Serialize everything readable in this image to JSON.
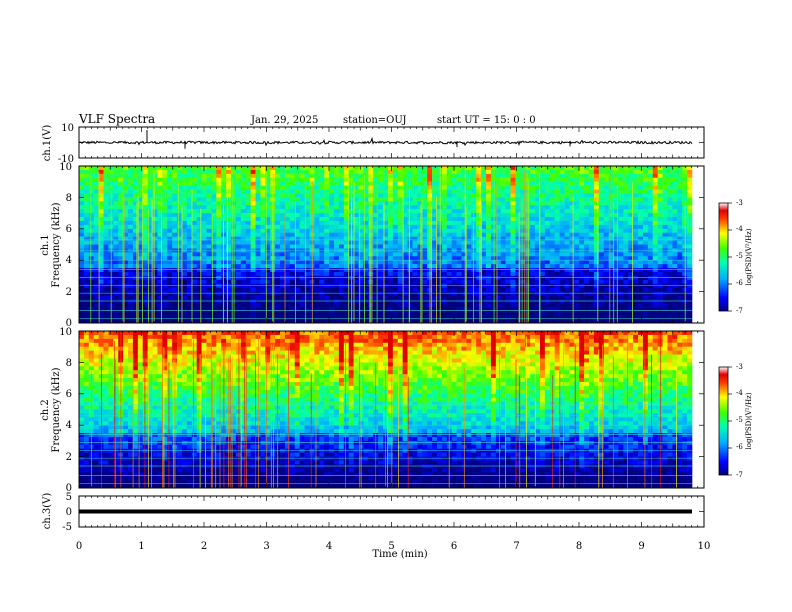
{
  "header": {
    "title": "VLF Spectra",
    "date": "Jan. 29, 2025",
    "station": "station=OUJ",
    "start": "start UT =  15: 0  : 0"
  },
  "chart_data": [
    {
      "type": "line",
      "ylabel": "ch.1(V)",
      "ylim": [
        -10,
        10
      ],
      "yticks": [
        "10",
        "-10"
      ],
      "baseline": 0,
      "color": "#000000"
    },
    {
      "type": "heatmap",
      "ylabel_line1": "ch.1",
      "ylabel_line2": "Frequency (kHz)",
      "ylim": [
        0,
        10
      ],
      "yticks": [
        "0",
        "2",
        "4",
        "6",
        "8",
        "10"
      ],
      "colorbar": {
        "label": "log(PSD)(V²/Hz)",
        "range": [
          -7,
          -3
        ],
        "ticks": [
          "-3",
          "-4",
          "-5",
          "-6",
          "-7"
        ]
      }
    },
    {
      "type": "heatmap",
      "ylabel_line1": "ch.2",
      "ylabel_line2": "Frequency (kHz)",
      "ylim": [
        0,
        10
      ],
      "yticks": [
        "0",
        "2",
        "4",
        "6",
        "8",
        "10"
      ],
      "colorbar": {
        "label": "log(PSD)(V²/Hz)",
        "range": [
          -7,
          -3
        ],
        "ticks": [
          "-3",
          "-4",
          "-5",
          "-6",
          "-7"
        ]
      }
    },
    {
      "type": "line",
      "ylabel": "ch.3(V)",
      "ylim": [
        -5,
        5
      ],
      "yticks": [
        "5",
        "0",
        "-5"
      ],
      "baseline": -0.3,
      "color": "#000000"
    }
  ],
  "xaxis": {
    "label": "Time (min)",
    "xlim": [
      0,
      10
    ],
    "ticks": [
      "0",
      "1",
      "2",
      "3",
      "4",
      "5",
      "6",
      "7",
      "8",
      "9",
      "10"
    ]
  }
}
